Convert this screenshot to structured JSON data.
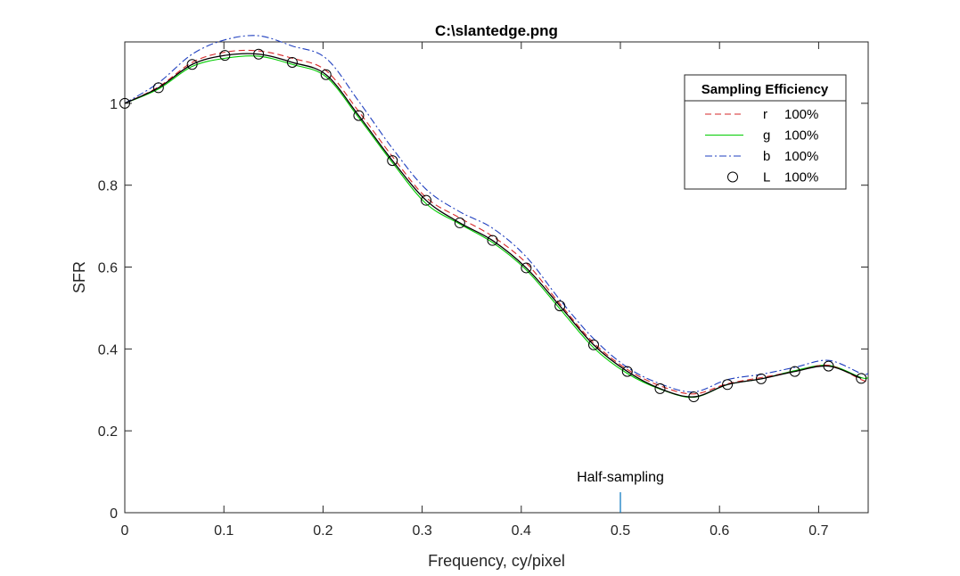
{
  "chart_data": {
    "type": "line",
    "title": "C:\\slantedge.png",
    "xlabel": "Frequency, cy/pixel",
    "ylabel": "SFR",
    "xlim": [
      0,
      0.75
    ],
    "ylim": [
      0,
      1.15
    ],
    "xticks": [
      0,
      0.1,
      0.2,
      0.3,
      0.4,
      0.5,
      0.6,
      0.7
    ],
    "xtick_labels": [
      "0",
      "0.1",
      "0.2",
      "0.3",
      "0.4",
      "0.5",
      "0.6",
      "0.7"
    ],
    "yticks": [
      0,
      0.2,
      0.4,
      0.6,
      0.8,
      1
    ],
    "ytick_labels": [
      "0",
      "0.2",
      "0.4",
      "0.6",
      "0.8",
      "1"
    ],
    "grid": false,
    "legend": {
      "title": "Sampling Efficiency",
      "position": "top-right",
      "entries": [
        {
          "name": "r",
          "pct": "100%"
        },
        {
          "name": "g",
          "pct": "100%"
        },
        {
          "name": "b",
          "pct": "100%"
        },
        {
          "name": "L",
          "pct": "100%"
        }
      ]
    },
    "annotation": {
      "text": "Half-sampling",
      "x": 0.5,
      "marker_height": 0.05,
      "color": "#0072bd"
    },
    "series": [
      {
        "name": "r",
        "color": "#d62728",
        "style": "dashed",
        "x": [
          0,
          0.034,
          0.068,
          0.101,
          0.135,
          0.169,
          0.203,
          0.236,
          0.27,
          0.304,
          0.338,
          0.371,
          0.405,
          0.439,
          0.473,
          0.507,
          0.54,
          0.574,
          0.608,
          0.642,
          0.676,
          0.71,
          0.743,
          0.75
        ],
        "y": [
          1.0,
          1.04,
          1.1,
          1.125,
          1.128,
          1.11,
          1.08,
          0.98,
          0.87,
          0.77,
          0.72,
          0.675,
          0.61,
          0.51,
          0.415,
          0.35,
          0.31,
          0.29,
          0.315,
          0.33,
          0.345,
          0.36,
          0.325,
          0.32
        ]
      },
      {
        "name": "g",
        "color": "#00cc00",
        "style": "solid",
        "x": [
          0,
          0.034,
          0.068,
          0.101,
          0.135,
          0.169,
          0.203,
          0.236,
          0.27,
          0.304,
          0.338,
          0.371,
          0.405,
          0.439,
          0.473,
          0.507,
          0.54,
          0.574,
          0.608,
          0.642,
          0.676,
          0.71,
          0.743,
          0.75
        ],
        "y": [
          1.0,
          1.035,
          1.09,
          1.11,
          1.115,
          1.095,
          1.065,
          0.965,
          0.855,
          0.755,
          0.705,
          0.66,
          0.593,
          0.498,
          0.403,
          0.34,
          0.302,
          0.282,
          0.313,
          0.327,
          0.347,
          0.36,
          0.33,
          0.33
        ]
      },
      {
        "name": "b",
        "color": "#1f3fbf",
        "style": "dashdot",
        "x": [
          0,
          0.034,
          0.068,
          0.101,
          0.135,
          0.169,
          0.203,
          0.236,
          0.27,
          0.304,
          0.338,
          0.371,
          0.405,
          0.439,
          0.473,
          0.507,
          0.54,
          0.574,
          0.608,
          0.642,
          0.676,
          0.71,
          0.743,
          0.75
        ],
        "y": [
          1.0,
          1.05,
          1.12,
          1.155,
          1.165,
          1.14,
          1.11,
          1.005,
          0.89,
          0.79,
          0.735,
          0.695,
          0.625,
          0.52,
          0.425,
          0.355,
          0.315,
          0.295,
          0.325,
          0.338,
          0.355,
          0.372,
          0.34,
          0.34
        ]
      },
      {
        "name": "L",
        "color": "#000000",
        "style": "solid",
        "marker": "circle",
        "x": [
          0,
          0.034,
          0.068,
          0.101,
          0.135,
          0.169,
          0.203,
          0.236,
          0.27,
          0.304,
          0.338,
          0.371,
          0.405,
          0.439,
          0.473,
          0.507,
          0.54,
          0.574,
          0.608,
          0.642,
          0.676,
          0.71,
          0.743
        ],
        "y": [
          1.0,
          1.038,
          1.095,
          1.117,
          1.12,
          1.1,
          1.07,
          0.97,
          0.86,
          0.763,
          0.708,
          0.665,
          0.598,
          0.505,
          0.41,
          0.345,
          0.303,
          0.283,
          0.313,
          0.327,
          0.345,
          0.358,
          0.328
        ]
      }
    ]
  }
}
